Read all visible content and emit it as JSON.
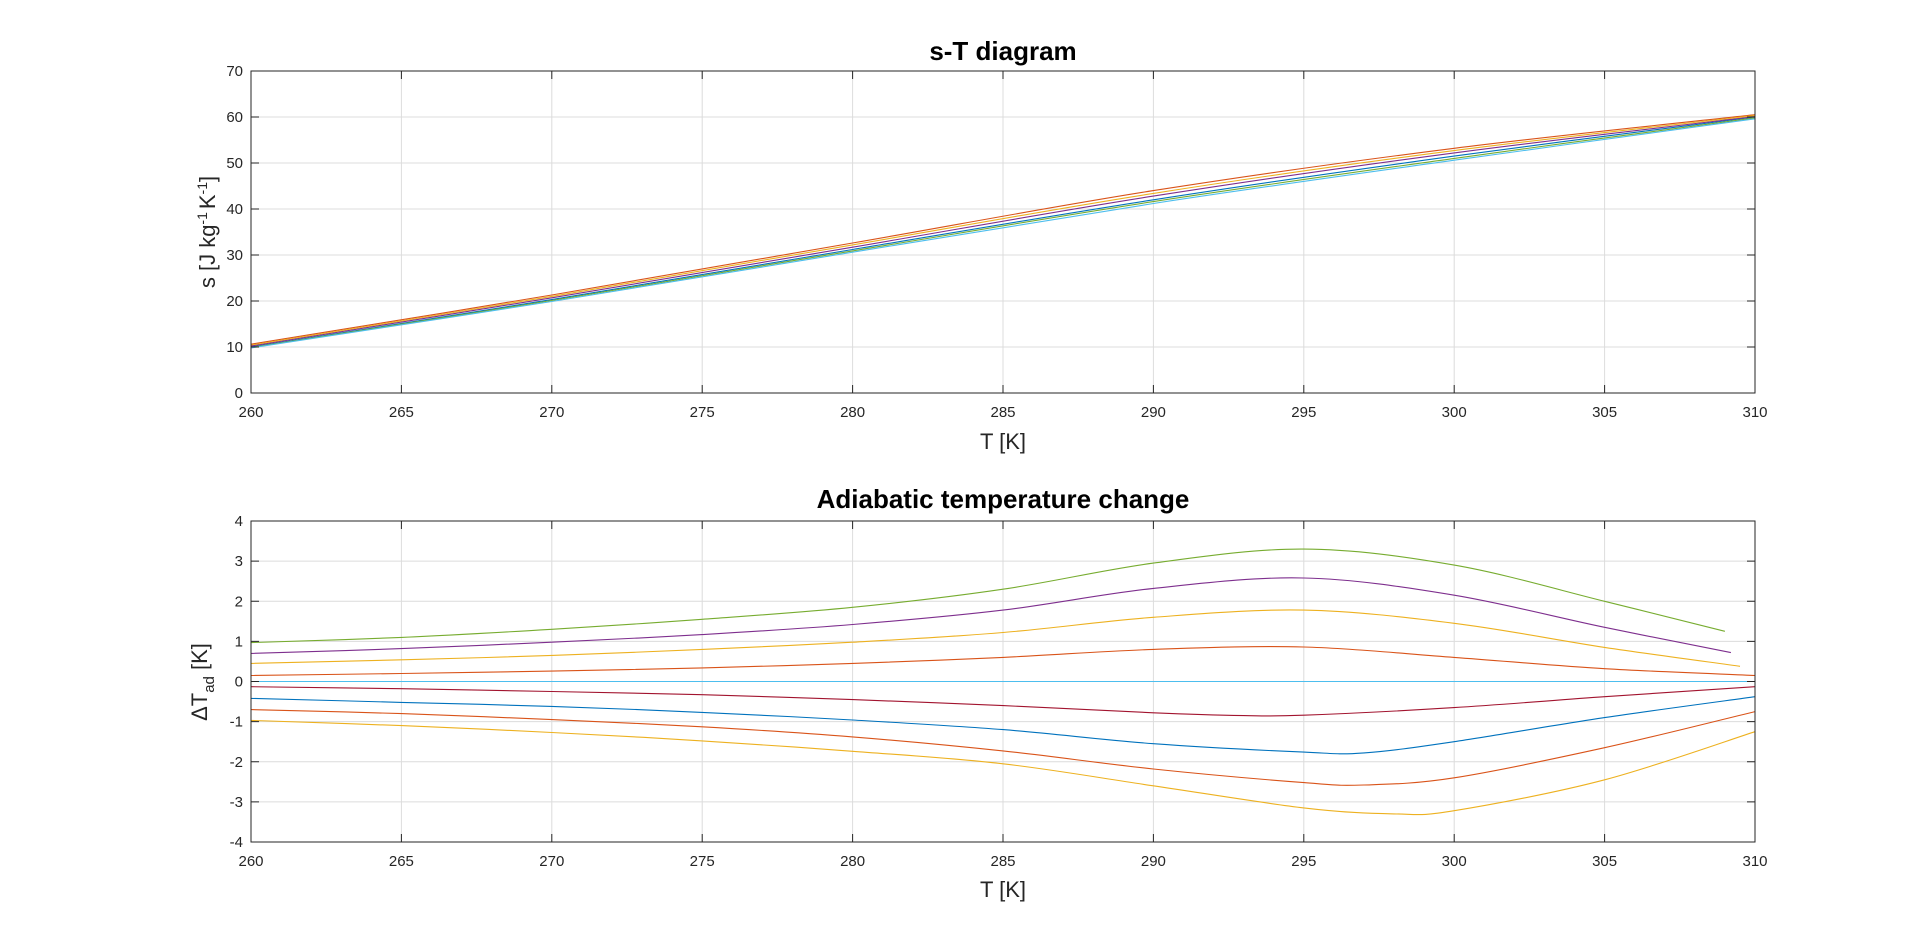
{
  "chart_data": [
    {
      "type": "line",
      "title": "s-T diagram",
      "xlabel": "T [K]",
      "ylabel_parts": [
        "s [J kg",
        "-1",
        "K",
        "-1",
        "]"
      ],
      "xlim": [
        260,
        310
      ],
      "ylim": [
        0,
        70
      ],
      "xticks": [
        260,
        265,
        270,
        275,
        280,
        285,
        290,
        295,
        300,
        305,
        310
      ],
      "yticks": [
        0,
        10,
        20,
        30,
        40,
        50,
        60,
        70
      ],
      "grid": true,
      "series": [
        {
          "color": "#0072BD",
          "x": [
            260,
            270,
            280,
            290,
            300,
            310
          ],
          "y": [
            10.0,
            20.3,
            31.2,
            42.0,
            51.5,
            60.0
          ]
        },
        {
          "color": "#D95319",
          "x": [
            260,
            270,
            280,
            290,
            300,
            310
          ],
          "y": [
            10.6,
            21.3,
            32.6,
            44.0,
            53.2,
            60.5
          ]
        },
        {
          "color": "#EDB120",
          "x": [
            260,
            270,
            280,
            290,
            300,
            310
          ],
          "y": [
            10.4,
            21.0,
            32.2,
            43.4,
            52.7,
            60.3
          ]
        },
        {
          "color": "#7E2F8E",
          "x": [
            260,
            270,
            280,
            290,
            300,
            310
          ],
          "y": [
            10.2,
            20.7,
            31.7,
            42.8,
            52.2,
            60.1
          ]
        },
        {
          "color": "#77AC30",
          "x": [
            260,
            270,
            280,
            290,
            300,
            310
          ],
          "y": [
            9.9,
            20.1,
            30.9,
            41.6,
            51.0,
            59.8
          ]
        },
        {
          "color": "#4DBEEE",
          "x": [
            260,
            270,
            280,
            290,
            300,
            310
          ],
          "y": [
            9.8,
            19.9,
            30.6,
            41.2,
            50.6,
            59.6
          ]
        }
      ]
    },
    {
      "type": "line",
      "title": "Adiabatic temperature change",
      "xlabel": "T [K]",
      "ylabel_parts": [
        "ΔT",
        "ad",
        " [K]"
      ],
      "xlim": [
        260,
        310
      ],
      "ylim": [
        -4,
        4
      ],
      "xticks": [
        260,
        265,
        270,
        275,
        280,
        285,
        290,
        295,
        300,
        305,
        310
      ],
      "yticks": [
        -4,
        -3,
        -2,
        -1,
        0,
        1,
        2,
        3,
        4
      ],
      "grid": true,
      "series": [
        {
          "color": "#77AC30",
          "x": [
            260,
            265,
            270,
            275,
            280,
            285,
            290,
            295,
            300,
            305,
            309
          ],
          "y": [
            0.97,
            1.1,
            1.3,
            1.55,
            1.85,
            2.3,
            2.95,
            3.3,
            2.9,
            2.0,
            1.25
          ]
        },
        {
          "color": "#7E2F8E",
          "x": [
            260,
            265,
            270,
            275,
            280,
            285,
            290,
            295,
            300,
            305,
            309.2
          ],
          "y": [
            0.7,
            0.82,
            0.98,
            1.17,
            1.42,
            1.78,
            2.32,
            2.58,
            2.15,
            1.35,
            0.72
          ]
        },
        {
          "color": "#EDB120",
          "x": [
            260,
            265,
            270,
            275,
            280,
            285,
            290,
            295,
            300,
            305,
            309.5
          ],
          "y": [
            0.45,
            0.54,
            0.65,
            0.8,
            0.98,
            1.22,
            1.6,
            1.78,
            1.45,
            0.85,
            0.38
          ]
        },
        {
          "color": "#D95319",
          "x": [
            260,
            265,
            270,
            275,
            280,
            285,
            290,
            295,
            300,
            305,
            310
          ],
          "y": [
            0.15,
            0.2,
            0.26,
            0.34,
            0.45,
            0.6,
            0.8,
            0.86,
            0.6,
            0.32,
            0.15
          ]
        },
        {
          "color": "#4DBEEE",
          "x": [
            260,
            310
          ],
          "y": [
            0,
            0
          ]
        },
        {
          "color": "#A2142F",
          "x": [
            260,
            265,
            270,
            275,
            280,
            285,
            290,
            293,
            295,
            300,
            305,
            310
          ],
          "y": [
            -0.13,
            -0.18,
            -0.25,
            -0.33,
            -0.45,
            -0.6,
            -0.78,
            -0.85,
            -0.84,
            -0.65,
            -0.38,
            -0.13
          ]
        },
        {
          "color": "#0072BD",
          "x": [
            260,
            265,
            270,
            275,
            280,
            285,
            290,
            295,
            297,
            300,
            305,
            310
          ],
          "y": [
            -0.42,
            -0.52,
            -0.62,
            -0.77,
            -0.96,
            -1.2,
            -1.55,
            -1.76,
            -1.78,
            -1.5,
            -0.9,
            -0.38
          ]
        },
        {
          "color": "#D95319",
          "x": [
            260,
            265,
            270,
            275,
            280,
            285,
            290,
            295,
            297,
            300,
            305,
            310
          ],
          "y": [
            -0.7,
            -0.8,
            -0.95,
            -1.13,
            -1.38,
            -1.73,
            -2.18,
            -2.52,
            -2.58,
            -2.4,
            -1.65,
            -0.75
          ]
        },
        {
          "color": "#EDB120",
          "x": [
            260,
            265,
            270,
            275,
            280,
            285,
            290,
            295,
            298,
            300,
            305,
            310
          ],
          "y": [
            -0.97,
            -1.1,
            -1.27,
            -1.48,
            -1.74,
            -2.05,
            -2.6,
            -3.15,
            -3.3,
            -3.22,
            -2.45,
            -1.25
          ]
        }
      ]
    }
  ]
}
